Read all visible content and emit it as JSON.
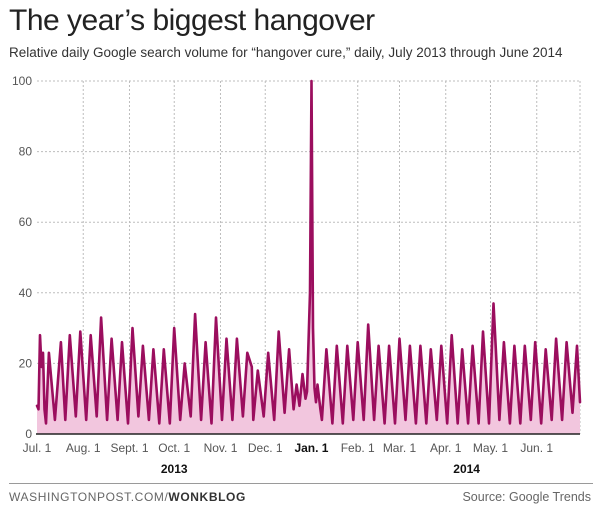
{
  "chart_data": {
    "type": "line",
    "title": "The year’s biggest hangover",
    "subtitle": "Relative daily Google search volume for “hangover cure,” daily, July 2013 through June 2014",
    "ylim": [
      0,
      100
    ],
    "yticks": [
      0,
      20,
      40,
      60,
      80,
      100
    ],
    "grid": true,
    "x_start": "2013-07-01",
    "x_end": "2014-06-30",
    "xticks": [
      {
        "label": "Jul. 1",
        "date": "2013-07-01",
        "bold": false
      },
      {
        "label": "Aug. 1",
        "date": "2013-08-01",
        "bold": false
      },
      {
        "label": "Sept. 1",
        "date": "2013-09-01",
        "bold": false
      },
      {
        "label": "Oct. 1",
        "date": "2013-10-01",
        "bold": false
      },
      {
        "label": "Nov. 1",
        "date": "2013-11-01",
        "bold": false
      },
      {
        "label": "Dec. 1",
        "date": "2013-12-01",
        "bold": false
      },
      {
        "label": "Jan. 1",
        "date": "2014-01-01",
        "bold": true
      },
      {
        "label": "Feb. 1",
        "date": "2014-02-01",
        "bold": false
      },
      {
        "label": "Mar. 1",
        "date": "2014-03-01",
        "bold": false
      },
      {
        "label": "Apr. 1",
        "date": "2014-04-01",
        "bold": false
      },
      {
        "label": "May. 1",
        "date": "2014-05-01",
        "bold": false
      },
      {
        "label": "Jun. 1",
        "date": "2014-06-01",
        "bold": false
      }
    ],
    "year_labels": [
      {
        "label": "2013",
        "date": "2013-10-01"
      },
      {
        "label": "2014",
        "date": "2014-04-15"
      }
    ],
    "series": [
      {
        "color": "#9b0e5e",
        "fill": "#f2c6de",
        "points": [
          [
            "2013-07-01",
            8
          ],
          [
            "2013-07-02",
            7
          ],
          [
            "2013-07-03",
            28
          ],
          [
            "2013-07-04",
            19
          ],
          [
            "2013-07-05",
            23
          ],
          [
            "2013-07-06",
            7
          ],
          [
            "2013-07-07",
            3
          ],
          [
            "2013-07-09",
            23
          ],
          [
            "2013-07-13",
            4
          ],
          [
            "2013-07-17",
            26
          ],
          [
            "2013-07-20",
            4
          ],
          [
            "2013-07-23",
            28
          ],
          [
            "2013-07-27",
            5
          ],
          [
            "2013-07-30",
            29
          ],
          [
            "2013-08-03",
            4
          ],
          [
            "2013-08-06",
            28
          ],
          [
            "2013-08-10",
            5
          ],
          [
            "2013-08-13",
            33
          ],
          [
            "2013-08-17",
            4
          ],
          [
            "2013-08-20",
            27
          ],
          [
            "2013-08-24",
            4
          ],
          [
            "2013-08-27",
            26
          ],
          [
            "2013-08-31",
            3
          ],
          [
            "2013-09-03",
            30
          ],
          [
            "2013-09-07",
            5
          ],
          [
            "2013-09-10",
            25
          ],
          [
            "2013-09-14",
            4
          ],
          [
            "2013-09-17",
            24
          ],
          [
            "2013-09-21",
            3
          ],
          [
            "2013-09-24",
            24
          ],
          [
            "2013-09-28",
            3
          ],
          [
            "2013-10-01",
            30
          ],
          [
            "2013-10-05",
            4
          ],
          [
            "2013-10-08",
            20
          ],
          [
            "2013-10-12",
            5
          ],
          [
            "2013-10-15",
            34
          ],
          [
            "2013-10-19",
            4
          ],
          [
            "2013-10-22",
            26
          ],
          [
            "2013-10-26",
            3
          ],
          [
            "2013-10-29",
            33
          ],
          [
            "2013-11-02",
            4
          ],
          [
            "2013-11-05",
            27
          ],
          [
            "2013-11-09",
            4
          ],
          [
            "2013-11-12",
            27
          ],
          [
            "2013-11-16",
            5
          ],
          [
            "2013-11-19",
            23
          ],
          [
            "2013-11-22",
            19
          ],
          [
            "2013-11-23",
            4
          ],
          [
            "2013-11-26",
            18
          ],
          [
            "2013-11-30",
            5
          ],
          [
            "2013-12-03",
            23
          ],
          [
            "2013-12-07",
            4
          ],
          [
            "2013-12-10",
            29
          ],
          [
            "2013-12-14",
            6
          ],
          [
            "2013-12-17",
            24
          ],
          [
            "2013-12-20",
            7
          ],
          [
            "2013-12-22",
            14
          ],
          [
            "2013-12-24",
            8
          ],
          [
            "2013-12-26",
            17
          ],
          [
            "2013-12-28",
            10
          ],
          [
            "2013-12-29",
            12
          ],
          [
            "2013-12-31",
            40
          ],
          [
            "2014-01-01",
            100
          ],
          [
            "2014-01-02",
            30
          ],
          [
            "2014-01-03",
            13
          ],
          [
            "2014-01-04",
            9
          ],
          [
            "2014-01-05",
            14
          ],
          [
            "2014-01-07",
            7
          ],
          [
            "2014-01-08",
            4
          ],
          [
            "2014-01-11",
            24
          ],
          [
            "2014-01-15",
            3
          ],
          [
            "2014-01-18",
            25
          ],
          [
            "2014-01-22",
            3
          ],
          [
            "2014-01-25",
            25
          ],
          [
            "2014-01-29",
            4
          ],
          [
            "2014-02-01",
            26
          ],
          [
            "2014-02-05",
            4
          ],
          [
            "2014-02-08",
            31
          ],
          [
            "2014-02-12",
            4
          ],
          [
            "2014-02-15",
            25
          ],
          [
            "2014-02-19",
            3
          ],
          [
            "2014-02-22",
            25
          ],
          [
            "2014-02-26",
            3
          ],
          [
            "2014-03-01",
            27
          ],
          [
            "2014-03-05",
            4
          ],
          [
            "2014-03-08",
            25
          ],
          [
            "2014-03-12",
            3
          ],
          [
            "2014-03-15",
            25
          ],
          [
            "2014-03-19",
            3
          ],
          [
            "2014-03-22",
            24
          ],
          [
            "2014-03-26",
            4
          ],
          [
            "2014-03-29",
            25
          ],
          [
            "2014-04-02",
            3
          ],
          [
            "2014-04-05",
            28
          ],
          [
            "2014-04-09",
            3
          ],
          [
            "2014-04-12",
            24
          ],
          [
            "2014-04-16",
            3
          ],
          [
            "2014-04-19",
            25
          ],
          [
            "2014-04-23",
            3
          ],
          [
            "2014-04-26",
            29
          ],
          [
            "2014-04-30",
            3
          ],
          [
            "2014-05-03",
            37
          ],
          [
            "2014-05-07",
            4
          ],
          [
            "2014-05-10",
            26
          ],
          [
            "2014-05-14",
            3
          ],
          [
            "2014-05-17",
            25
          ],
          [
            "2014-05-21",
            3
          ],
          [
            "2014-05-24",
            25
          ],
          [
            "2014-05-28",
            4
          ],
          [
            "2014-05-31",
            26
          ],
          [
            "2014-06-04",
            3
          ],
          [
            "2014-06-07",
            24
          ],
          [
            "2014-06-11",
            4
          ],
          [
            "2014-06-14",
            27
          ],
          [
            "2014-06-18",
            4
          ],
          [
            "2014-06-21",
            26
          ],
          [
            "2014-06-25",
            6
          ],
          [
            "2014-06-28",
            25
          ],
          [
            "2014-06-30",
            9
          ]
        ]
      }
    ]
  },
  "footer": {
    "source_prefix": "WASHINGTONPOST.COM/",
    "source_brand": "WONKBLOG",
    "credit": "Source: Google Trends"
  }
}
